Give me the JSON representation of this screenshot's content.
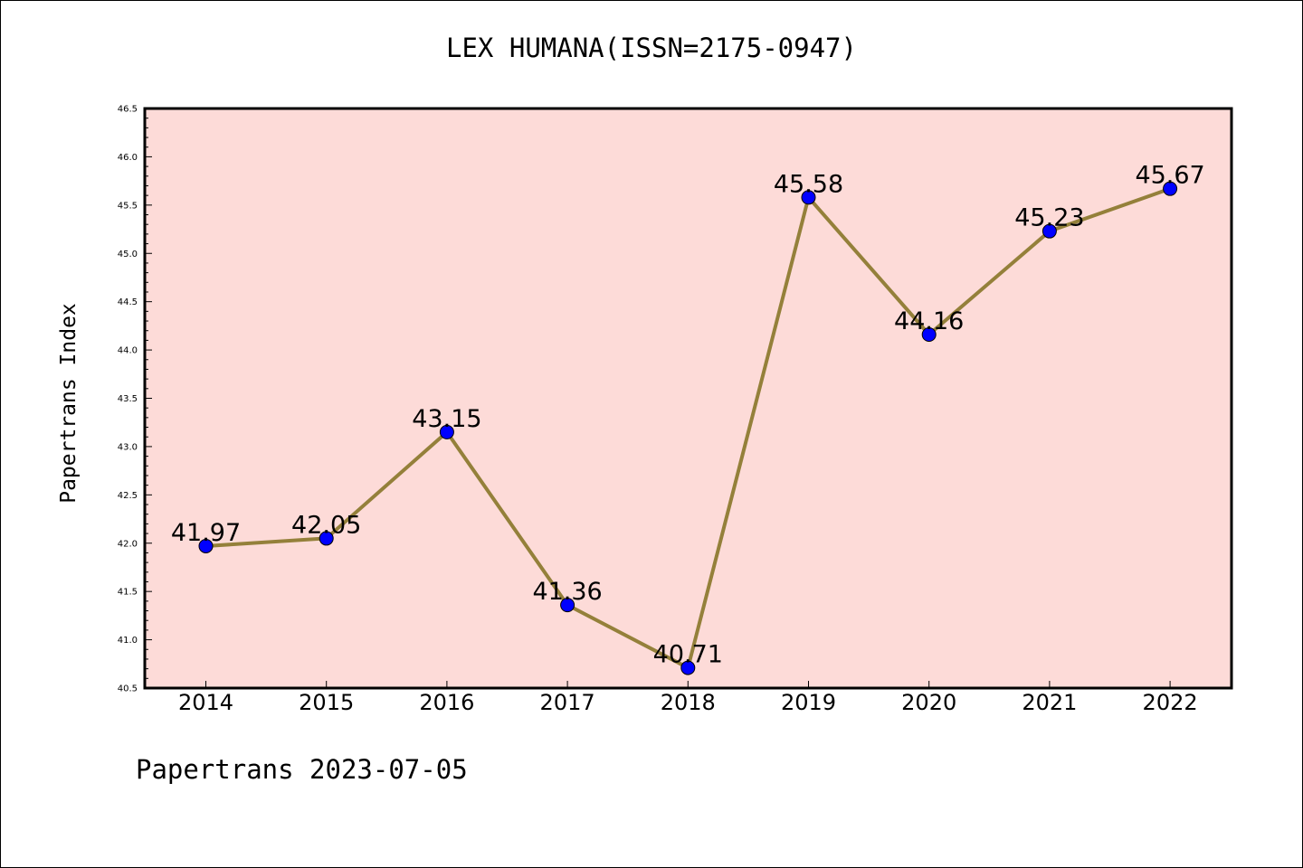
{
  "chart_data": {
    "type": "line",
    "title": "LEX HUMANA(ISSN=2175-0947)",
    "xlabel": "",
    "ylabel": "Papertrans Index",
    "categories": [
      "2014",
      "2015",
      "2016",
      "2017",
      "2018",
      "2019",
      "2020",
      "2021",
      "2022"
    ],
    "series": [
      {
        "values": [
          41.97,
          42.05,
          43.15,
          41.36,
          40.71,
          45.58,
          44.16,
          45.23,
          45.67
        ],
        "labels": [
          "41.97",
          "42.05",
          "43.15",
          "41.36",
          "40.71",
          "45.58",
          "44.16",
          "45.23",
          "45.67"
        ]
      }
    ],
    "ylim": [
      40.5,
      46.5
    ],
    "yticks": [
      "40.5",
      "41.0",
      "41.5",
      "42.0",
      "42.5",
      "43.0",
      "43.5",
      "44.0",
      "44.5",
      "45.0",
      "45.5",
      "46.0",
      "46.5"
    ],
    "grid": false,
    "colors": {
      "plot_background": "#fddbd8",
      "line": "#94803a",
      "marker": "#0000ff"
    }
  },
  "footer": "Papertrans 2023-07-05"
}
